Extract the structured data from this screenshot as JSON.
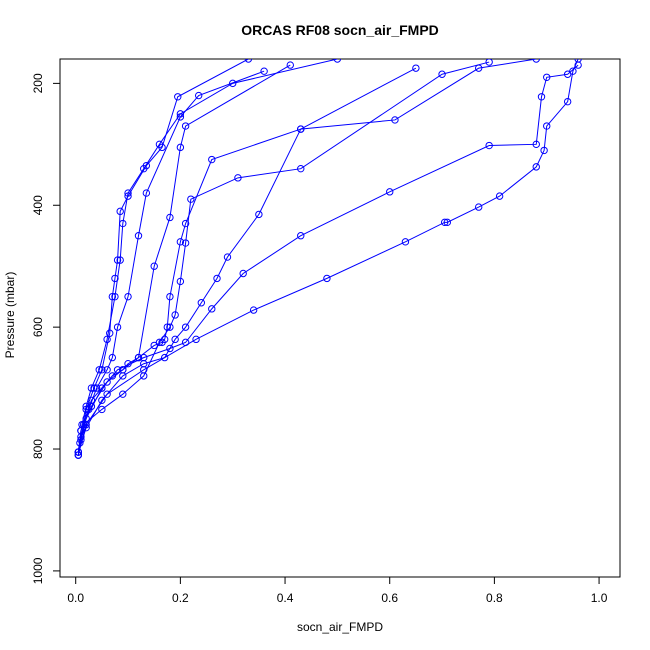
{
  "chart_data": {
    "type": "line",
    "title": "ORCAS RF08 socn_air_FMPD",
    "xlabel": "socn_air_FMPD",
    "ylabel": "Pressure (mbar)",
    "xlim": [
      -0.03,
      1.04
    ],
    "ylim": [
      1010,
      160
    ],
    "y_reversed": true,
    "x_ticks": [
      0.0,
      0.2,
      0.4,
      0.6,
      0.8,
      1.0
    ],
    "x_tick_labels": [
      "0.0",
      "0.2",
      "0.4",
      "0.6",
      "0.8",
      "1.0"
    ],
    "y_ticks": [
      200,
      400,
      600,
      800,
      1000
    ],
    "y_tick_labels": [
      "200",
      "400",
      "600",
      "800",
      "1000"
    ],
    "grid": false,
    "legend": "none",
    "color": "#0000ff",
    "marker": "open-circle",
    "series": [
      {
        "x": [
          0.005,
          0.008,
          0.012,
          0.02,
          0.03,
          0.045,
          0.06,
          0.075,
          0.085,
          0.09,
          0.1,
          0.13,
          0.16,
          0.2,
          0.3,
          0.5
        ],
        "y": [
          810,
          790,
          760,
          730,
          700,
          670,
          620,
          550,
          490,
          430,
          380,
          340,
          300,
          250,
          200,
          160
        ]
      },
      {
        "x": [
          0.005,
          0.01,
          0.02,
          0.035,
          0.05,
          0.065,
          0.07,
          0.075,
          0.08,
          0.085,
          0.1,
          0.135,
          0.165,
          0.195,
          0.33
        ],
        "y": [
          810,
          785,
          735,
          700,
          670,
          610,
          550,
          520,
          490,
          410,
          385,
          335,
          305,
          222,
          160
        ]
      },
      {
        "x": [
          0.005,
          0.01,
          0.025,
          0.04,
          0.06,
          0.07,
          0.08,
          0.1,
          0.12,
          0.135,
          0.2,
          0.235,
          0.36
        ],
        "y": [
          805,
          780,
          735,
          700,
          670,
          650,
          600,
          550,
          450,
          380,
          255,
          220,
          180
        ]
      },
      {
        "x": [
          0.005,
          0.01,
          0.03,
          0.05,
          0.07,
          0.09,
          0.1,
          0.12,
          0.15,
          0.18,
          0.2,
          0.21,
          0.41
        ],
        "y": [
          805,
          770,
          720,
          700,
          680,
          670,
          660,
          650,
          500,
          420,
          305,
          270,
          170
        ]
      },
      {
        "x": [
          0.005,
          0.01,
          0.03,
          0.06,
          0.09,
          0.12,
          0.15,
          0.165,
          0.17,
          0.175,
          0.18,
          0.2,
          0.21,
          0.26,
          0.43,
          0.65
        ],
        "y": [
          805,
          770,
          730,
          690,
          670,
          650,
          630,
          625,
          620,
          600,
          550,
          460,
          430,
          325,
          275,
          175
        ]
      },
      {
        "x": [
          0.005,
          0.015,
          0.05,
          0.09,
          0.13,
          0.16,
          0.18,
          0.19,
          0.2,
          0.21,
          0.22,
          0.31,
          0.43,
          0.7,
          0.79
        ],
        "y": [
          805,
          760,
          735,
          710,
          680,
          625,
          600,
          580,
          525,
          462,
          390,
          355,
          340,
          185,
          165
        ]
      },
      {
        "x": [
          0.005,
          0.02,
          0.05,
          0.09,
          0.13,
          0.17,
          0.19,
          0.21,
          0.24,
          0.27,
          0.29,
          0.35,
          0.43,
          0.61,
          0.77,
          0.88
        ],
        "y": [
          805,
          765,
          720,
          680,
          660,
          650,
          620,
          600,
          560,
          520,
          485,
          415,
          275,
          260,
          175,
          160
        ]
      },
      {
        "x": [
          0.005,
          0.02,
          0.05,
          0.08,
          0.13,
          0.18,
          0.21,
          0.26,
          0.32,
          0.43,
          0.6,
          0.79,
          0.88,
          0.89,
          0.9,
          0.94,
          0.96
        ],
        "y": [
          805,
          750,
          700,
          670,
          650,
          635,
          625,
          570,
          512,
          450,
          378,
          302,
          300,
          222,
          190,
          185,
          170
        ]
      },
      {
        "x": [
          0.005,
          0.02,
          0.06,
          0.13,
          0.23,
          0.34,
          0.48,
          0.63,
          0.705,
          0.71,
          0.77,
          0.81,
          0.88,
          0.895,
          0.9,
          0.94,
          0.95,
          0.96
        ],
        "y": [
          810,
          760,
          710,
          670,
          620,
          572,
          520,
          460,
          428,
          428,
          403,
          385,
          337,
          310,
          270,
          230,
          180,
          160
        ]
      }
    ]
  }
}
